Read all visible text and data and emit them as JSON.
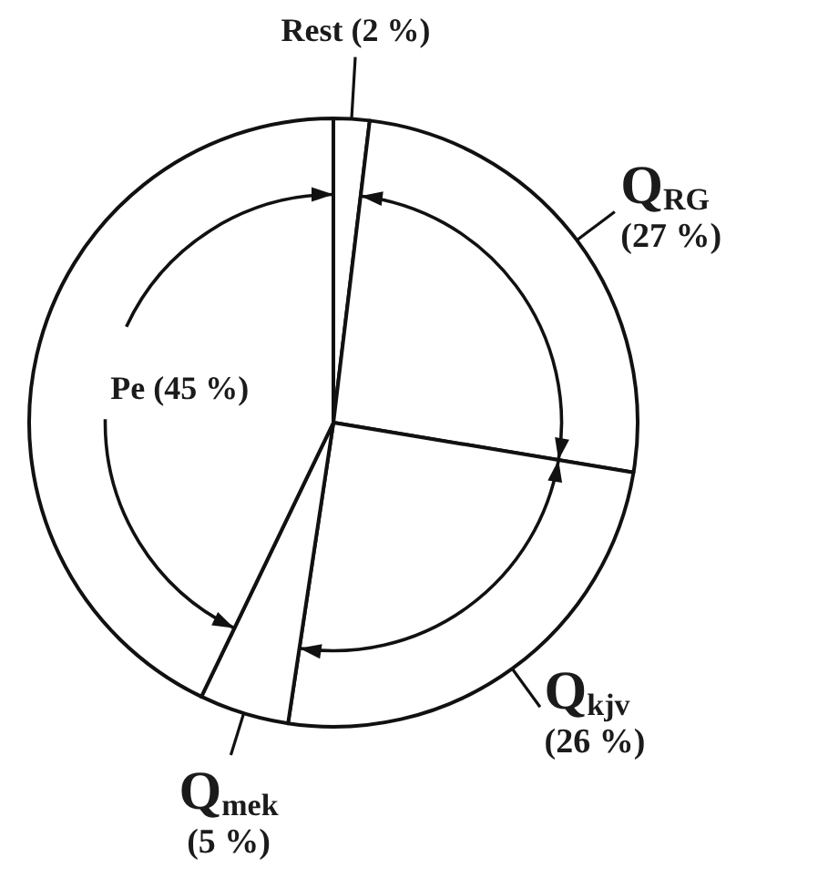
{
  "chart_data": {
    "type": "pie",
    "categories": [
      "Rest",
      "Q$_{RG}$",
      "Q$_{kjv}$",
      "Q$_{mek}$",
      "Pe"
    ],
    "values": [
      2,
      27,
      26,
      5,
      45
    ],
    "colors": [
      "#ffffff",
      "#ffffff",
      "#ffffff",
      "#ffffff",
      "#ffffff"
    ],
    "value_labels": [
      "(2 %)",
      "(27 %)",
      "(26 %)",
      "(5 %)",
      "(45 %)"
    ]
  }
}
